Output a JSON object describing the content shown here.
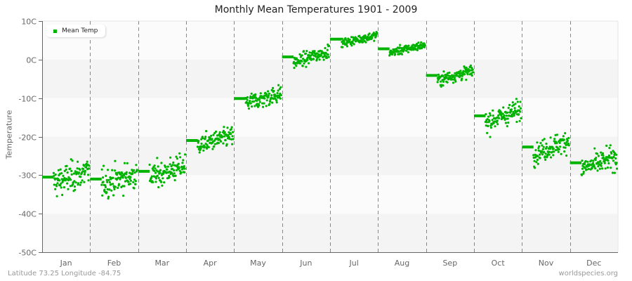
{
  "title": "Monthly Mean Temperatures 1901 - 2009",
  "ylabel": "Temperature",
  "legend": {
    "label": "Mean Temp",
    "color": "#00b300"
  },
  "footer": {
    "location": "Latitude 73.25 Longitude -84.75",
    "source": "worldspecies.org"
  },
  "colors": {
    "point": "#00b300",
    "band_light": "#fbfbfb",
    "band_dark": "#f4f4f4",
    "axis": "#666666",
    "divider": "#888888"
  },
  "chart_data": {
    "type": "scatter",
    "title": "Monthly Mean Temperatures 1901 - 2009",
    "xlabel": "",
    "ylabel": "Temperature",
    "ylim": [
      -50,
      10
    ],
    "yticks": [
      "10C",
      "0C",
      "-10C",
      "-20C",
      "-30C",
      "-40C",
      "-50C"
    ],
    "categories": [
      "Jan",
      "Feb",
      "Mar",
      "Apr",
      "May",
      "Jun",
      "Jul",
      "Aug",
      "Sep",
      "Oct",
      "Nov",
      "Dec"
    ],
    "legend": [
      "Mean Temp"
    ],
    "legend_position": "top-left",
    "grid": "alternating horizontal bands, dashed vertical month dividers",
    "series": [
      {
        "name": "Mean Temp (long-term monthly mean line)",
        "values": [
          -30.5,
          -31.0,
          -29.0,
          -21.0,
          -10.1,
          0.7,
          5.3,
          2.8,
          -4.1,
          -14.6,
          -22.7,
          -26.8
        ]
      }
    ],
    "yearly_scatter": {
      "years": "1901-2009",
      "spread_c": [
        3.2,
        3.0,
        2.6,
        2.0,
        1.9,
        1.4,
        0.9,
        0.9,
        1.3,
        2.2,
        2.3,
        2.4
      ],
      "trend_c": [
        3.0,
        2.5,
        3.0,
        2.5,
        2.5,
        3.0,
        2.0,
        2.0,
        2.5,
        3.5,
        3.5,
        3.0
      ]
    }
  }
}
